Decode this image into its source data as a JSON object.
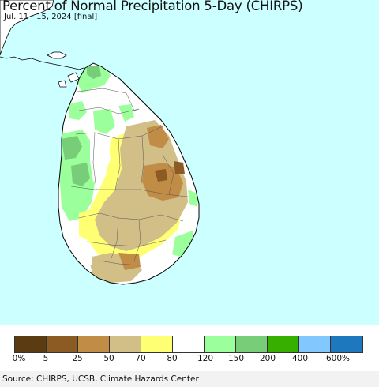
{
  "title": "Percent of Normal Precipitation 5-Day (CHIRPS)",
  "subtitle": "Jul. 11 - 15, 2024 [final]",
  "source": "Source: CHIRPS, UCSB, Climate Hazards Center",
  "colors": {
    "ocean": "#ccffff",
    "land_normal": "#ffffff",
    "boundary": "#555555",
    "coast": "#000000"
  },
  "legend": {
    "colors": [
      "#5a3b12",
      "#8c5a23",
      "#c08c46",
      "#d2be87",
      "#ffff73",
      "#ffffff",
      "#9bff9b",
      "#78cd78",
      "#37af00",
      "#82c8ff",
      "#1e78be"
    ],
    "labels": [
      "0%",
      "5",
      "25",
      "50",
      "70",
      "80",
      "120",
      "150",
      "200",
      "400",
      "600%"
    ]
  }
}
